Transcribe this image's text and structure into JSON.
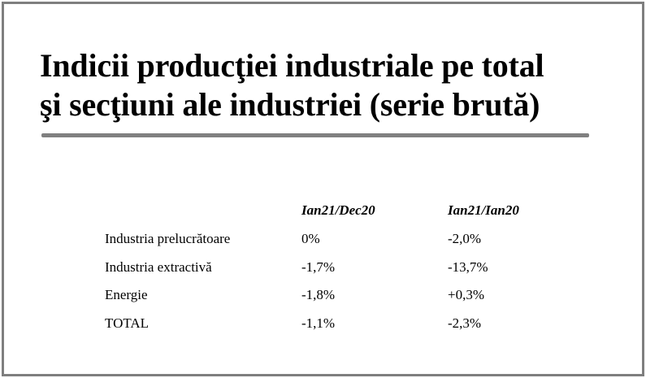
{
  "title": {
    "line1": "Indicii producţiei industriale pe total",
    "line2": "şi secţiuni ale industriei (serie brută)"
  },
  "table": {
    "headers": [
      "",
      "Ian21/Dec20",
      "Ian21/Ian20"
    ],
    "rows": [
      {
        "label": "Industria prelucrătoare",
        "mom": "0%",
        "yoy": "-2,0%"
      },
      {
        "label": "Industria extractivă",
        "mom": "-1,7%",
        "yoy": "-13,7%"
      },
      {
        "label": "Energie",
        "mom": "-1,8%",
        "yoy": "+0,3%"
      },
      {
        "label": "TOTAL",
        "mom": "-1,1%",
        "yoy": "-2,3%"
      }
    ]
  },
  "colors": {
    "border": "#7f7f7f",
    "rule": "#808080",
    "text": "#000000"
  }
}
